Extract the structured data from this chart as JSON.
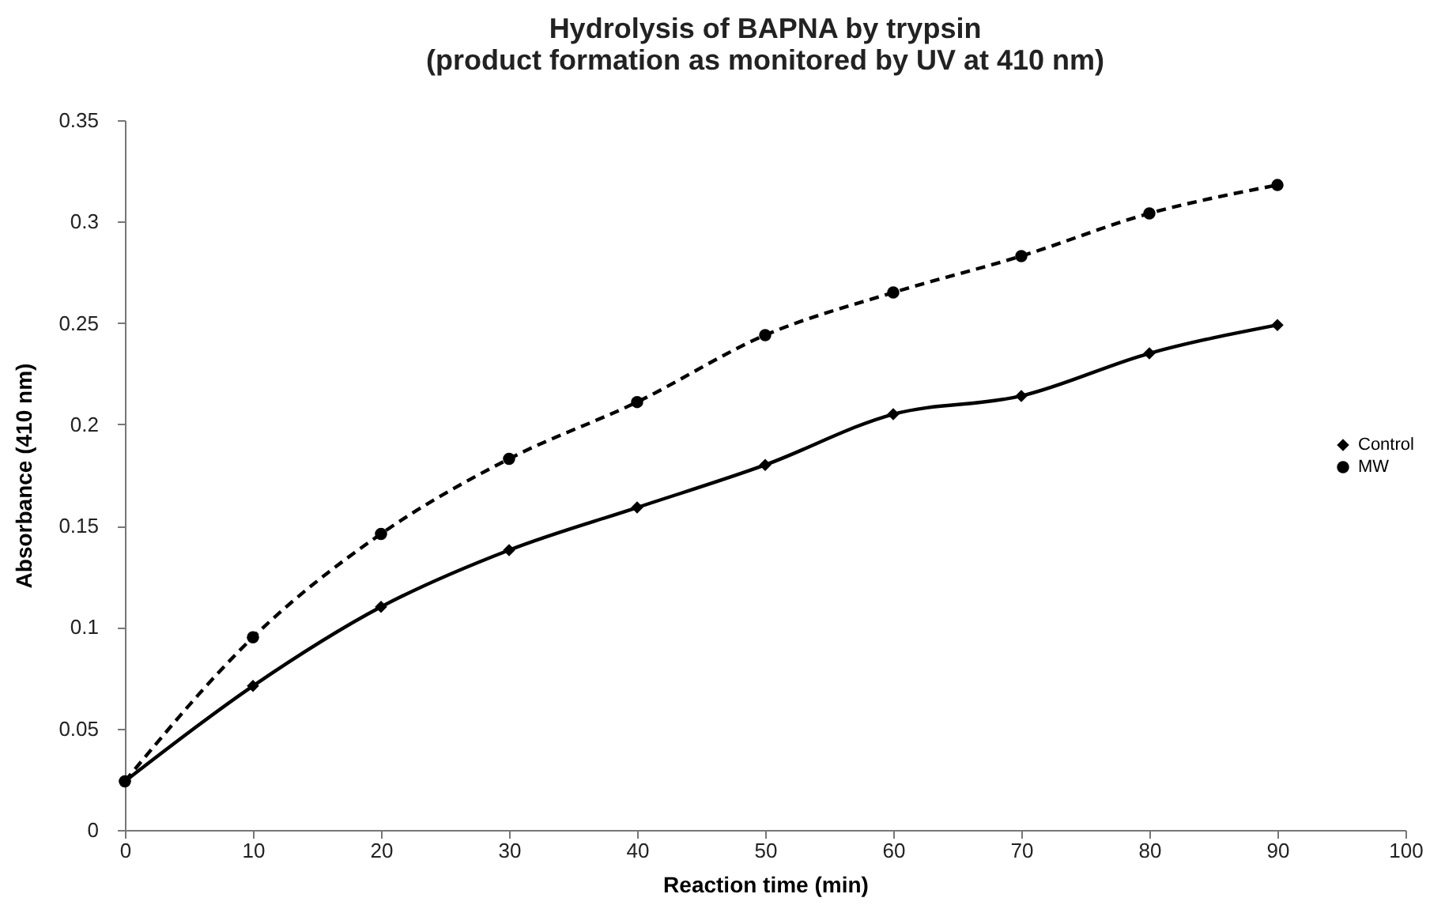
{
  "chart_data": {
    "type": "line",
    "title": [
      "Hydrolysis of BAPNA by trypsin",
      "(product formation as monitored by UV at 410 nm)"
    ],
    "xlabel": "Reaction time (min)",
    "ylabel": "Absorbance  (410 nm)",
    "x": [
      0,
      10,
      20,
      30,
      40,
      50,
      60,
      70,
      80,
      90
    ],
    "series": [
      {
        "name": "Control",
        "color": "#000000",
        "marker": "diamond",
        "line_style": "solid",
        "values": [
          0.024,
          0.071,
          0.11,
          0.138,
          0.159,
          0.18,
          0.205,
          0.214,
          0.235,
          0.249
        ]
      },
      {
        "name": "MW",
        "color": "#000000",
        "marker": "circle",
        "line_style": "dashed",
        "values": [
          0.024,
          0.095,
          0.146,
          0.183,
          0.211,
          0.244,
          0.265,
          0.283,
          0.304,
          0.318
        ]
      }
    ],
    "xlim": [
      0,
      100
    ],
    "xticks": [
      0,
      10,
      20,
      30,
      40,
      50,
      60,
      70,
      80,
      90,
      100
    ],
    "ylim": [
      0,
      0.35
    ],
    "yticks": [
      0,
      0.05,
      0.1,
      0.15,
      0.2,
      0.25,
      0.3,
      0.35
    ],
    "grid": false,
    "legend": "right"
  }
}
